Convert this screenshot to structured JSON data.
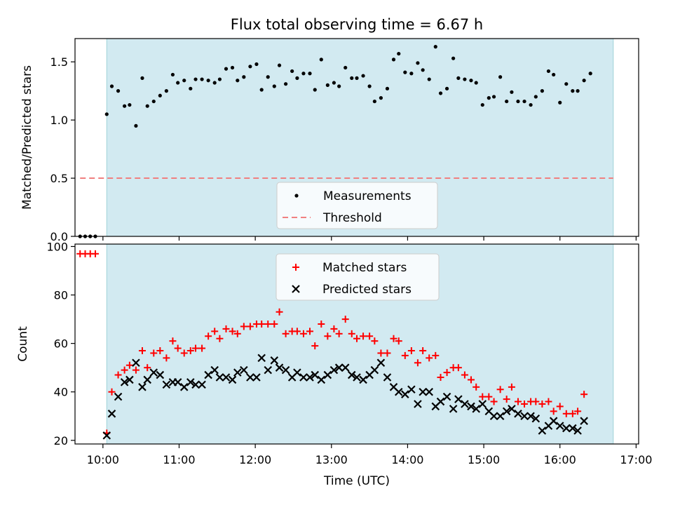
{
  "figure": {
    "title": "Flux total observing time = 6.67 h",
    "xlabel": "Time (UTC)"
  },
  "colors": {
    "shade": "#add8e6",
    "measurement": "#000000",
    "threshold": "#f08080",
    "matched": "#ff0000",
    "predicted": "#000000"
  },
  "chart_data": [
    {
      "type": "scatter",
      "panel": "top",
      "ylabel": "Matched/Predicted stars",
      "ylim": [
        0,
        1.7
      ],
      "yticks": [
        "0.0",
        "0.5",
        "1.0",
        "1.5"
      ],
      "xlim": [
        "09:38",
        "17:02"
      ],
      "shaded_region": {
        "start": "10:03",
        "end": "16:42"
      },
      "legend": {
        "position": "lower-center",
        "entries": [
          "Measurements",
          "Threshold"
        ]
      },
      "threshold": {
        "name": "Threshold",
        "value": 0.5,
        "x": [
          "09:42",
          "16:42"
        ]
      },
      "series": [
        {
          "name": "Measurements",
          "marker": "dot",
          "points": [
            [
              "09:42",
              0.0
            ],
            [
              "09:46",
              0.0
            ],
            [
              "09:50",
              0.0
            ],
            [
              "09:54",
              0.0
            ],
            [
              "10:03",
              1.05
            ],
            [
              "10:07",
              1.29
            ],
            [
              "10:12",
              1.25
            ],
            [
              "10:17",
              1.12
            ],
            [
              "10:21",
              1.13
            ],
            [
              "10:26",
              0.95
            ],
            [
              "10:31",
              1.36
            ],
            [
              "10:35",
              1.12
            ],
            [
              "10:40",
              1.16
            ],
            [
              "10:45",
              1.21
            ],
            [
              "10:50",
              1.25
            ],
            [
              "10:55",
              1.39
            ],
            [
              "10:59",
              1.32
            ],
            [
              "11:04",
              1.34
            ],
            [
              "11:09",
              1.27
            ],
            [
              "11:13",
              1.35
            ],
            [
              "11:18",
              1.35
            ],
            [
              "11:23",
              1.34
            ],
            [
              "11:28",
              1.32
            ],
            [
              "11:32",
              1.35
            ],
            [
              "11:37",
              1.44
            ],
            [
              "11:42",
              1.45
            ],
            [
              "11:46",
              1.34
            ],
            [
              "11:51",
              1.37
            ],
            [
              "11:56",
              1.46
            ],
            [
              "12:01",
              1.48
            ],
            [
              "12:05",
              1.26
            ],
            [
              "12:10",
              1.37
            ],
            [
              "12:15",
              1.29
            ],
            [
              "12:19",
              1.47
            ],
            [
              "12:24",
              1.31
            ],
            [
              "12:29",
              1.42
            ],
            [
              "12:33",
              1.36
            ],
            [
              "12:38",
              1.4
            ],
            [
              "12:43",
              1.4
            ],
            [
              "12:47",
              1.26
            ],
            [
              "12:52",
              1.52
            ],
            [
              "12:57",
              1.3
            ],
            [
              "13:02",
              1.32
            ],
            [
              "13:06",
              1.29
            ],
            [
              "13:11",
              1.45
            ],
            [
              "13:16",
              1.36
            ],
            [
              "13:20",
              1.36
            ],
            [
              "13:25",
              1.38
            ],
            [
              "13:30",
              1.29
            ],
            [
              "13:34",
              1.16
            ],
            [
              "13:39",
              1.19
            ],
            [
              "13:44",
              1.27
            ],
            [
              "13:49",
              1.52
            ],
            [
              "13:53",
              1.57
            ],
            [
              "13:58",
              1.41
            ],
            [
              "14:03",
              1.4
            ],
            [
              "14:08",
              1.49
            ],
            [
              "14:12",
              1.43
            ],
            [
              "14:17",
              1.35
            ],
            [
              "14:22",
              1.63
            ],
            [
              "14:26",
              1.23
            ],
            [
              "14:31",
              1.27
            ],
            [
              "14:36",
              1.53
            ],
            [
              "14:40",
              1.36
            ],
            [
              "14:45",
              1.35
            ],
            [
              "14:50",
              1.34
            ],
            [
              "14:54",
              1.32
            ],
            [
              "14:59",
              1.13
            ],
            [
              "15:04",
              1.19
            ],
            [
              "15:08",
              1.2
            ],
            [
              "15:13",
              1.37
            ],
            [
              "15:18",
              1.16
            ],
            [
              "15:22",
              1.24
            ],
            [
              "15:27",
              1.16
            ],
            [
              "15:32",
              1.16
            ],
            [
              "15:37",
              1.13
            ],
            [
              "15:41",
              1.2
            ],
            [
              "15:46",
              1.25
            ],
            [
              "15:51",
              1.42
            ],
            [
              "15:55",
              1.39
            ],
            [
              "16:00",
              1.15
            ],
            [
              "16:05",
              1.31
            ],
            [
              "16:10",
              1.25
            ],
            [
              "16:14",
              1.25
            ],
            [
              "16:19",
              1.34
            ],
            [
              "16:24",
              1.4
            ]
          ]
        }
      ]
    },
    {
      "type": "scatter",
      "panel": "bottom",
      "ylabel": "Count",
      "ylim": [
        18.5,
        101
      ],
      "yticks": [
        "20",
        "40",
        "60",
        "80",
        "100"
      ],
      "xlim": [
        "09:38",
        "17:02"
      ],
      "xticks": [
        "10:00",
        "11:00",
        "12:00",
        "13:00",
        "14:00",
        "15:00",
        "16:00",
        "17:00"
      ],
      "shaded_region": {
        "start": "10:03",
        "end": "16:42"
      },
      "legend": {
        "position": "top-center",
        "entries": [
          "Matched stars",
          "Predicted stars"
        ]
      },
      "series": [
        {
          "name": "Matched stars",
          "marker": "plus",
          "points": [
            [
              "09:42",
              97
            ],
            [
              "09:46",
              97
            ],
            [
              "09:50",
              97
            ],
            [
              "09:54",
              97
            ],
            [
              "10:03",
              23
            ],
            [
              "10:07",
              40
            ],
            [
              "10:12",
              47
            ],
            [
              "10:17",
              49
            ],
            [
              "10:21",
              51
            ],
            [
              "10:26",
              49
            ],
            [
              "10:31",
              57
            ],
            [
              "10:35",
              50
            ],
            [
              "10:40",
              56
            ],
            [
              "10:45",
              57
            ],
            [
              "10:50",
              54
            ],
            [
              "10:55",
              61
            ],
            [
              "10:59",
              58
            ],
            [
              "11:04",
              56
            ],
            [
              "11:09",
              57
            ],
            [
              "11:13",
              58
            ],
            [
              "11:18",
              58
            ],
            [
              "11:23",
              63
            ],
            [
              "11:28",
              65
            ],
            [
              "11:32",
              62
            ],
            [
              "11:37",
              66
            ],
            [
              "11:42",
              65
            ],
            [
              "11:46",
              64
            ],
            [
              "11:51",
              67
            ],
            [
              "11:56",
              67
            ],
            [
              "12:01",
              68
            ],
            [
              "12:05",
              68
            ],
            [
              "12:10",
              68
            ],
            [
              "12:15",
              68
            ],
            [
              "12:19",
              73
            ],
            [
              "12:24",
              64
            ],
            [
              "12:29",
              65
            ],
            [
              "12:33",
              65
            ],
            [
              "12:38",
              64
            ],
            [
              "12:43",
              65
            ],
            [
              "12:47",
              59
            ],
            [
              "12:52",
              68
            ],
            [
              "12:57",
              63
            ],
            [
              "13:02",
              66
            ],
            [
              "13:06",
              64
            ],
            [
              "13:11",
              70
            ],
            [
              "13:16",
              64
            ],
            [
              "13:20",
              62
            ],
            [
              "13:25",
              63
            ],
            [
              "13:30",
              63
            ],
            [
              "13:34",
              61
            ],
            [
              "13:39",
              56
            ],
            [
              "13:44",
              56
            ],
            [
              "13:49",
              62
            ],
            [
              "13:53",
              61
            ],
            [
              "13:58",
              55
            ],
            [
              "14:03",
              57
            ],
            [
              "14:08",
              52
            ],
            [
              "14:12",
              57
            ],
            [
              "14:17",
              54
            ],
            [
              "14:22",
              55
            ],
            [
              "14:26",
              46
            ],
            [
              "14:31",
              48
            ],
            [
              "14:36",
              50
            ],
            [
              "14:40",
              50
            ],
            [
              "14:45",
              47
            ],
            [
              "14:50",
              45
            ],
            [
              "14:54",
              42
            ],
            [
              "14:59",
              38
            ],
            [
              "15:04",
              38
            ],
            [
              "15:08",
              36
            ],
            [
              "15:13",
              41
            ],
            [
              "15:18",
              37
            ],
            [
              "15:22",
              42
            ],
            [
              "15:27",
              36
            ],
            [
              "15:32",
              35
            ],
            [
              "15:37",
              36
            ],
            [
              "15:41",
              36
            ],
            [
              "15:46",
              35
            ],
            [
              "15:51",
              36
            ],
            [
              "15:55",
              32
            ],
            [
              "16:00",
              34
            ],
            [
              "16:05",
              31
            ],
            [
              "16:10",
              31
            ],
            [
              "16:14",
              32
            ],
            [
              "16:19",
              39
            ]
          ]
        },
        {
          "name": "Predicted stars",
          "marker": "x",
          "points": [
            [
              "10:03",
              22
            ],
            [
              "10:07",
              31
            ],
            [
              "10:12",
              38
            ],
            [
              "10:17",
              44
            ],
            [
              "10:21",
              45
            ],
            [
              "10:26",
              52
            ],
            [
              "10:31",
              42
            ],
            [
              "10:35",
              45
            ],
            [
              "10:40",
              48
            ],
            [
              "10:45",
              47
            ],
            [
              "10:50",
              43
            ],
            [
              "10:55",
              44
            ],
            [
              "10:59",
              44
            ],
            [
              "11:04",
              42
            ],
            [
              "11:09",
              44
            ],
            [
              "11:13",
              43
            ],
            [
              "11:18",
              43
            ],
            [
              "11:23",
              47
            ],
            [
              "11:28",
              49
            ],
            [
              "11:32",
              46
            ],
            [
              "11:37",
              46
            ],
            [
              "11:42",
              45
            ],
            [
              "11:46",
              48
            ],
            [
              "11:51",
              49
            ],
            [
              "11:56",
              46
            ],
            [
              "12:01",
              46
            ],
            [
              "12:05",
              54
            ],
            [
              "12:10",
              49
            ],
            [
              "12:15",
              53
            ],
            [
              "12:19",
              50
            ],
            [
              "12:24",
              49
            ],
            [
              "12:29",
              46
            ],
            [
              "12:33",
              48
            ],
            [
              "12:38",
              46
            ],
            [
              "12:43",
              46
            ],
            [
              "12:47",
              47
            ],
            [
              "12:52",
              45
            ],
            [
              "12:57",
              47
            ],
            [
              "13:02",
              49
            ],
            [
              "13:06",
              50
            ],
            [
              "13:11",
              50
            ],
            [
              "13:16",
              47
            ],
            [
              "13:20",
              46
            ],
            [
              "13:25",
              45
            ],
            [
              "13:30",
              47
            ],
            [
              "13:34",
              49
            ],
            [
              "13:39",
              52
            ],
            [
              "13:44",
              46
            ],
            [
              "13:49",
              42
            ],
            [
              "13:53",
              40
            ],
            [
              "13:58",
              39
            ],
            [
              "14:03",
              41
            ],
            [
              "14:08",
              35
            ],
            [
              "14:12",
              40
            ],
            [
              "14:17",
              40
            ],
            [
              "14:22",
              34
            ],
            [
              "14:26",
              36
            ],
            [
              "14:31",
              38
            ],
            [
              "14:36",
              33
            ],
            [
              "14:40",
              37
            ],
            [
              "14:45",
              35
            ],
            [
              "14:50",
              34
            ],
            [
              "14:54",
              33
            ],
            [
              "14:59",
              35
            ],
            [
              "15:04",
              32
            ],
            [
              "15:08",
              30
            ],
            [
              "15:13",
              30
            ],
            [
              "15:18",
              32
            ],
            [
              "15:22",
              33
            ],
            [
              "15:27",
              31
            ],
            [
              "15:32",
              30
            ],
            [
              "15:37",
              30
            ],
            [
              "15:41",
              29
            ],
            [
              "15:46",
              24
            ],
            [
              "15:51",
              26
            ],
            [
              "15:55",
              28
            ],
            [
              "16:00",
              26
            ],
            [
              "16:05",
              25
            ],
            [
              "16:10",
              25
            ],
            [
              "16:14",
              24
            ],
            [
              "16:19",
              28
            ]
          ]
        }
      ]
    }
  ]
}
